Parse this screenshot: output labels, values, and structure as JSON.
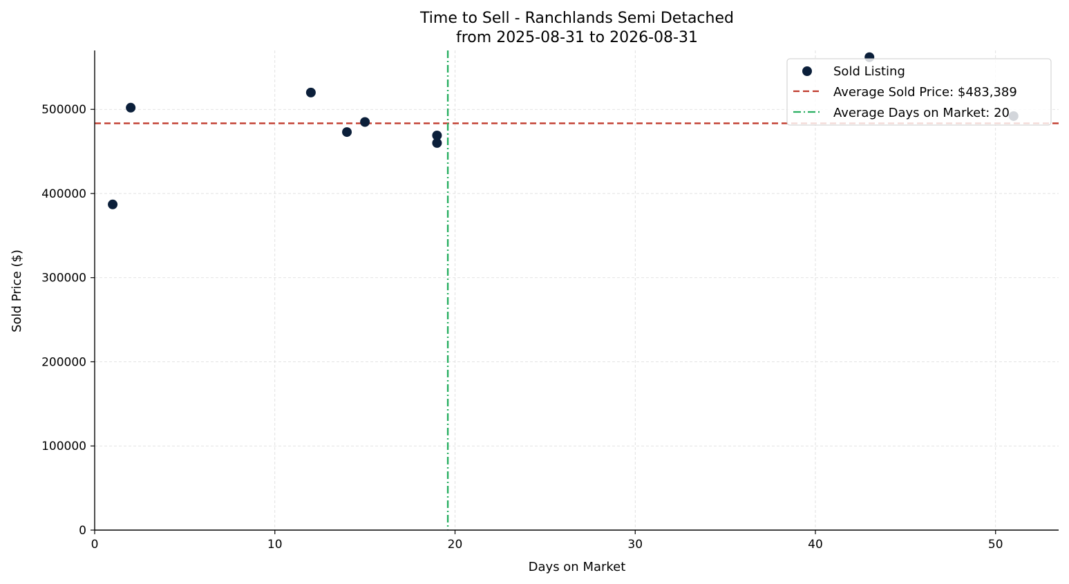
{
  "chart_data": {
    "type": "scatter",
    "title": "Time to Sell - Ranchlands Semi Detached",
    "subtitle": "from 2025-08-31 to 2026-08-31",
    "xlabel": "Days on Market",
    "ylabel": "Sold Price ($)",
    "xlim": [
      0,
      53.5
    ],
    "ylim": [
      0,
      570000
    ],
    "x_ticks": [
      0,
      10,
      20,
      30,
      40,
      50
    ],
    "y_ticks": [
      0,
      100000,
      200000,
      300000,
      400000,
      500000
    ],
    "x_tick_labels": [
      "0",
      "10",
      "20",
      "30",
      "40",
      "50"
    ],
    "y_tick_labels": [
      "0",
      "100000",
      "200000",
      "300000",
      "400000",
      "500000"
    ],
    "grid": true,
    "legend_position": "top-right",
    "series": [
      {
        "name": "Sold Listing",
        "color": "#0b1f3a",
        "points": [
          {
            "x": 1,
            "y": 387000
          },
          {
            "x": 2,
            "y": 502000
          },
          {
            "x": 12,
            "y": 520000
          },
          {
            "x": 14,
            "y": 473000
          },
          {
            "x": 15,
            "y": 485000
          },
          {
            "x": 19,
            "y": 469000
          },
          {
            "x": 19,
            "y": 460000
          },
          {
            "x": 43,
            "y": 562000
          },
          {
            "x": 51,
            "y": 492000
          }
        ]
      }
    ],
    "reference_lines": [
      {
        "name": "Average Sold Price: $483,389",
        "orientation": "horizontal",
        "value": 483389,
        "color": "#c0392b",
        "style": "dashed"
      },
      {
        "name": "Average Days on Market: 20",
        "orientation": "vertical",
        "value": 19.6,
        "color": "#27ae60",
        "style": "dashdot"
      }
    ]
  }
}
